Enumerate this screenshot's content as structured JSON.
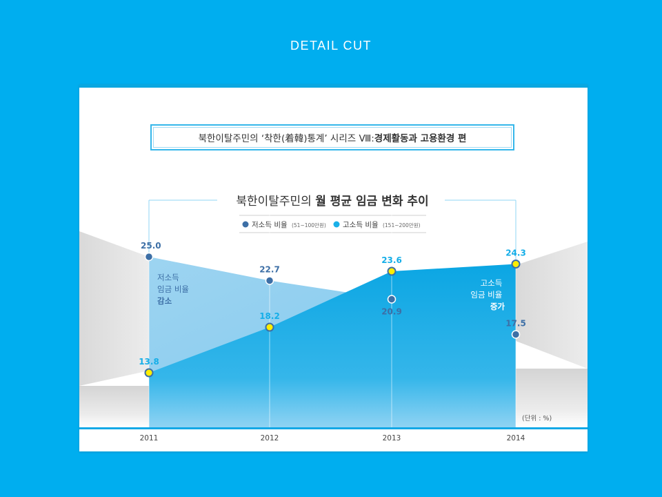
{
  "header": {
    "label": "DETAIL  CUT"
  },
  "series_banner": {
    "regular": "북한이탈주민의 ‘착한(着韓)통계’ 시리즈 Ⅷ: ",
    "bold": "경제활동과 고용환경 편"
  },
  "chart_data": {
    "type": "area",
    "title_regular": "북한이탈주민의 ",
    "title_bold": "월 평균 임금 변화 추이",
    "categories": [
      "2011",
      "2012",
      "2013",
      "2014"
    ],
    "series": [
      {
        "name": "저소득 비율",
        "range": "(51~100만원)",
        "values": [
          25.0,
          22.7,
          20.9,
          17.5
        ],
        "color": "#3d6fa6"
      },
      {
        "name": "고소득 비율",
        "range": "(151~200만원)",
        "values": [
          13.8,
          18.2,
          23.6,
          24.3
        ],
        "color": "#1ab0e8"
      }
    ],
    "value_labels": {
      "low": [
        "25.0",
        "22.7",
        "20.9",
        "17.5"
      ],
      "high": [
        "13.8",
        "18.2",
        "23.6",
        "24.3"
      ]
    },
    "annotations": {
      "low_trend": [
        "저소득",
        "임금 비율",
        "감소"
      ],
      "high_trend": [
        "고소득",
        "임금 비율",
        "증가"
      ]
    },
    "unit": "(단위 : %)",
    "ylim": [
      0,
      30
    ],
    "colors": {
      "low": "#3d6fa6",
      "high": "#1ab0e8",
      "point_fill_high": "#ffee00",
      "background": "#00aeef"
    }
  }
}
